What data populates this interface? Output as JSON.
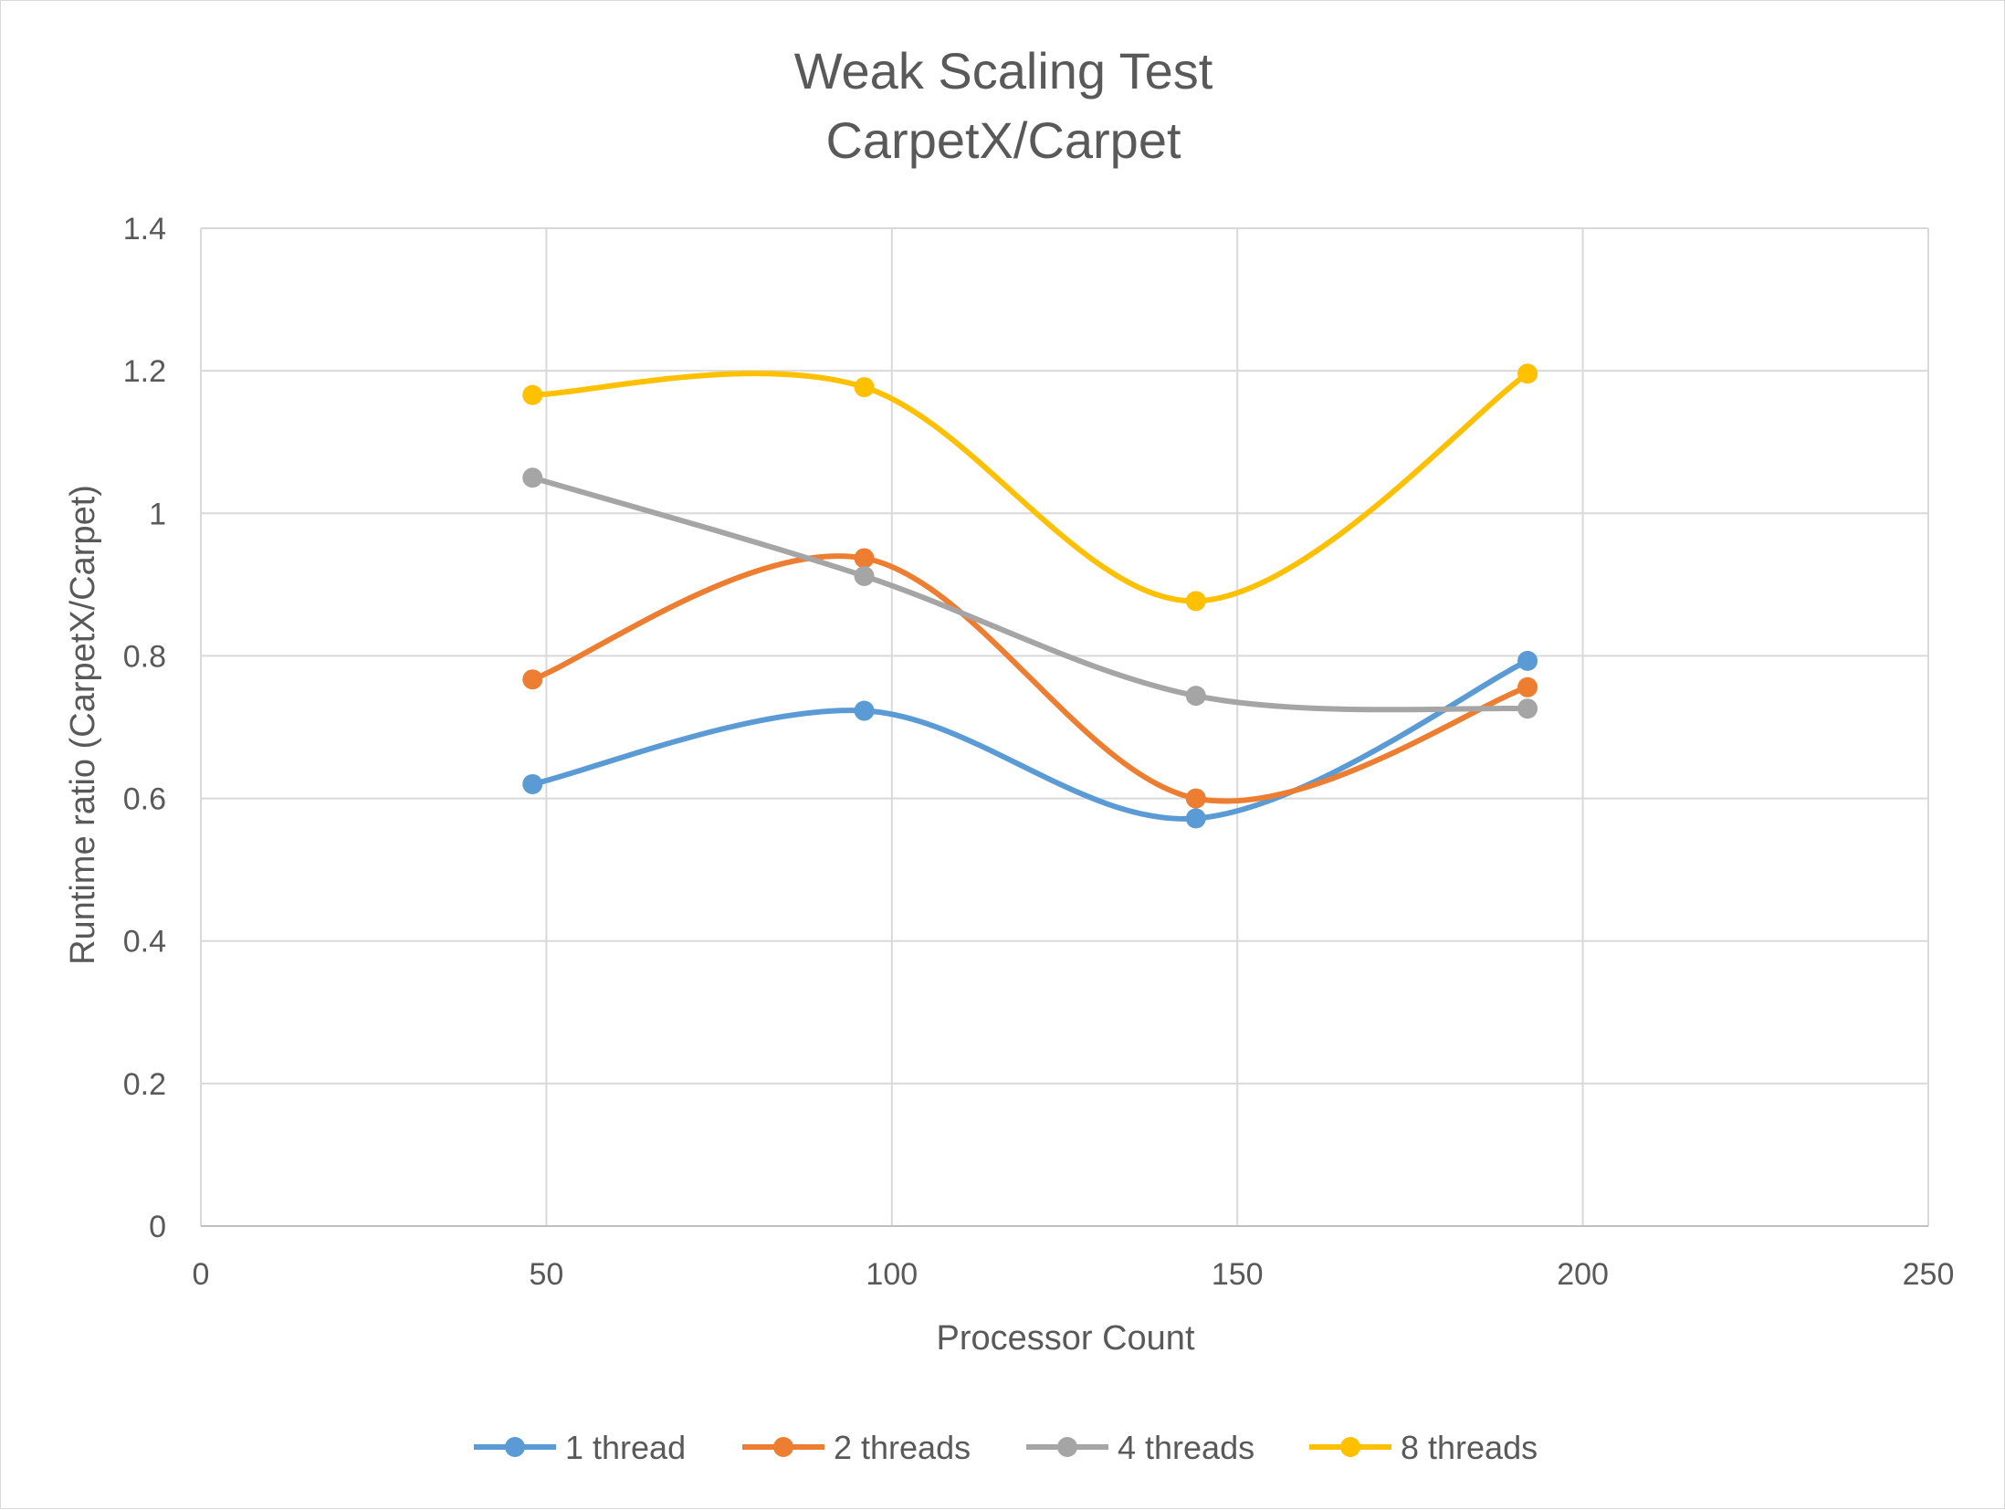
{
  "chart_data": {
    "type": "line",
    "smooth": true,
    "title": "Weak Scaling Test",
    "subtitle": "CarpetX/Carpet",
    "xlabel": "Processor Count",
    "ylabel": "Runtime ratio (CarpetX/Carpet)",
    "xlim": [
      0,
      250
    ],
    "ylim": [
      0,
      1.4
    ],
    "x_ticks": [
      "0",
      "50",
      "100",
      "150",
      "200",
      "250"
    ],
    "y_ticks": [
      "0",
      "0.2",
      "0.4",
      "0.6",
      "0.8",
      "1",
      "1.2",
      "1.4"
    ],
    "grid": true,
    "legend_position": "bottom",
    "x": [
      48,
      96,
      144,
      192
    ],
    "series": [
      {
        "name": "1 thread",
        "color": "#5b9bd5",
        "values": [
          0.62,
          0.723,
          0.572,
          0.793
        ]
      },
      {
        "name": "2 threads",
        "color": "#ed7d31",
        "values": [
          0.767,
          0.937,
          0.6,
          0.756
        ]
      },
      {
        "name": "4 threads",
        "color": "#a5a5a5",
        "values": [
          1.05,
          0.912,
          0.744,
          0.726
        ]
      },
      {
        "name": "8 threads",
        "color": "#ffc000",
        "values": [
          1.166,
          1.177,
          0.877,
          1.196
        ]
      }
    ]
  }
}
